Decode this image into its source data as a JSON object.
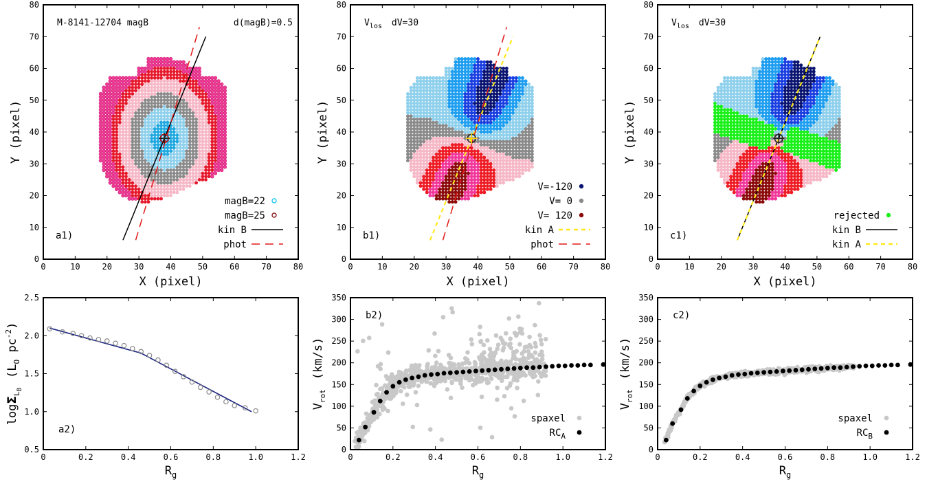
{
  "chart_data": [
    {
      "id": "a1",
      "type": "scatter",
      "panel_label": "a1)",
      "xlabel": "X  (pixel)",
      "ylabel": "Y  (pixel)",
      "xlim": [
        0,
        80
      ],
      "ylim": [
        0,
        80
      ],
      "xticks": [
        "0",
        "10",
        "20",
        "30",
        "40",
        "50",
        "60",
        "70",
        "80"
      ],
      "yticks": [
        "0",
        "10",
        "20",
        "30",
        "40",
        "50",
        "60",
        "70",
        "80"
      ],
      "annotation_left": "M-8141-12704  magB",
      "annotation_right": "d(magB)=0.5",
      "center": [
        38,
        38
      ],
      "isophote_levels": [
        "#1fa8e0",
        "#8fd0ec",
        "#8a8a8a",
        "#f6b8c6",
        "#e6192c",
        "#ee3d9a"
      ],
      "legend": [
        {
          "label": "magB=22",
          "marker": "open-circle",
          "color": "#1fc8f0"
        },
        {
          "label": "magB=25",
          "marker": "open-circle",
          "color": "#8b1a1a"
        },
        {
          "label": "kin B",
          "line": "solid",
          "color": "#000000"
        },
        {
          "label": "phot",
          "line": "dashed",
          "color": "#e01818"
        }
      ],
      "lines": [
        {
          "name": "kin B",
          "x": [
            25,
            51
          ],
          "y": [
            6,
            70
          ]
        },
        {
          "name": "phot",
          "x": [
            29,
            49
          ],
          "y": [
            6,
            73
          ]
        }
      ]
    },
    {
      "id": "b1",
      "type": "scatter",
      "panel_label": "b1)",
      "xlabel": "X  (pixel)",
      "ylabel": "Y  (pixel)",
      "xlim": [
        0,
        80
      ],
      "ylim": [
        0,
        80
      ],
      "xticks": [
        "0",
        "10",
        "20",
        "30",
        "40",
        "50",
        "60",
        "70",
        "80"
      ],
      "yticks": [
        "0",
        "10",
        "20",
        "30",
        "40",
        "50",
        "60",
        "70",
        "80"
      ],
      "annotation_base": "V",
      "annotation_sub": "los",
      "annotation_rest": "dV=30",
      "center": [
        38,
        38
      ],
      "velocity_palette": [
        "#0a1470",
        "#1a3ee0",
        "#1e9ef0",
        "#8fd0ec",
        "#8a8a8a",
        "#f6b8c6",
        "#ee1c24",
        "#f0389a",
        "#8b0a0a"
      ],
      "legend": [
        {
          "label": "V=-120",
          "marker": "dot",
          "color": "#0a1470"
        },
        {
          "label": "V=   0",
          "marker": "dot",
          "color": "#8a8a8a"
        },
        {
          "label": "V= 120",
          "marker": "dot",
          "color": "#8b0a0a"
        },
        {
          "label": "kin A",
          "line": "dashed",
          "color": "#ffe81a"
        },
        {
          "label": "phot",
          "line": "dashed",
          "color": "#e01818"
        }
      ],
      "lines": [
        {
          "name": "kin A",
          "x": [
            25,
            51
          ],
          "y": [
            6,
            70
          ]
        },
        {
          "name": "phot",
          "x": [
            29,
            49
          ],
          "y": [
            6,
            73
          ]
        }
      ]
    },
    {
      "id": "c1",
      "type": "scatter",
      "panel_label": "c1)",
      "xlabel": "X  (pixel)",
      "ylabel": "Y  (pixel)",
      "xlim": [
        0,
        80
      ],
      "ylim": [
        0,
        80
      ],
      "xticks": [
        "0",
        "10",
        "20",
        "30",
        "40",
        "50",
        "60",
        "70",
        "80"
      ],
      "yticks": [
        "0",
        "10",
        "20",
        "30",
        "40",
        "50",
        "60",
        "70",
        "80"
      ],
      "annotation_base": "V",
      "annotation_sub": "los",
      "annotation_rest": "dV=30",
      "center": [
        38,
        38
      ],
      "legend": [
        {
          "label": "rejected",
          "marker": "dot",
          "color": "#18f018"
        },
        {
          "label": "kin B",
          "line": "solid",
          "color": "#000000"
        },
        {
          "label": "kin A",
          "line": "dashed",
          "color": "#ffe81a"
        }
      ],
      "lines": [
        {
          "name": "kin B",
          "x": [
            25,
            51
          ],
          "y": [
            6,
            70
          ]
        },
        {
          "name": "kin A",
          "x": [
            25,
            51
          ],
          "y": [
            6,
            70
          ]
        }
      ]
    },
    {
      "id": "a2",
      "type": "line",
      "panel_label": "a2)",
      "xlabel_base": "R",
      "xlabel_sub": "g",
      "ylabel_main": "log",
      "ylabel_sigma": "Σ",
      "ylabel_sub": "L",
      "ylabel_subsub": "B",
      "ylabel_unit": "(L",
      "ylabel_unit_sub": "O",
      "ylabel_unit_rest": " pc",
      "ylabel_unit_sup": "-2",
      "ylabel_unit_close": ")",
      "xlim": [
        0,
        1.2
      ],
      "ylim": [
        0.5,
        2.5
      ],
      "xticks": [
        "0",
        "0.2",
        "0.4",
        "0.6",
        "0.8",
        "1.0",
        "1.2"
      ],
      "yticks": [
        "0.5",
        "1.0",
        "1.5",
        "2.0",
        "2.5"
      ],
      "series": [
        {
          "name": "data",
          "style": "open-circle",
          "color": "#8a8a8a",
          "x": [
            0.03,
            0.09,
            0.14,
            0.18,
            0.22,
            0.26,
            0.3,
            0.34,
            0.38,
            0.42,
            0.46,
            0.5,
            0.54,
            0.58,
            0.62,
            0.66,
            0.7,
            0.74,
            0.78,
            0.82,
            0.86,
            0.9,
            0.95,
            1.0
          ],
          "y": [
            2.09,
            2.05,
            2.03,
            2.0,
            1.97,
            1.95,
            1.93,
            1.9,
            1.87,
            1.83,
            1.79,
            1.74,
            1.68,
            1.61,
            1.53,
            1.46,
            1.39,
            1.32,
            1.26,
            1.19,
            1.13,
            1.08,
            1.05,
            1.01
          ]
        },
        {
          "name": "fit",
          "style": "line",
          "color": "#1a237e",
          "x": [
            0.03,
            0.46,
            0.98
          ],
          "y": [
            2.1,
            1.77,
            1.0
          ]
        }
      ]
    },
    {
      "id": "b2",
      "type": "scatter",
      "panel_label": "b2)",
      "xlabel_base": "R",
      "xlabel_sub": "g",
      "ylabel_base": "V",
      "ylabel_sub": "rot",
      "ylabel_rest": "(km/s)",
      "xlim": [
        0,
        1.2
      ],
      "ylim": [
        0,
        350
      ],
      "xticks": [
        "0",
        "0.2",
        "0.4",
        "0.6",
        "0.8",
        "1.0",
        "1.2"
      ],
      "yticks": [
        "0",
        "50",
        "100",
        "150",
        "200",
        "250",
        "300",
        "350"
      ],
      "legend": [
        {
          "label": "spaxel",
          "marker": "dot",
          "color": "#c8c8c8"
        },
        {
          "label_base": "RC",
          "label_sub": "A",
          "marker": "dot",
          "color": "#000000"
        }
      ],
      "rc_x": [
        0.04,
        0.07,
        0.11,
        0.14,
        0.17,
        0.2,
        0.23,
        0.26,
        0.29,
        0.32,
        0.35,
        0.38,
        0.41,
        0.44,
        0.47,
        0.5,
        0.53,
        0.56,
        0.59,
        0.62,
        0.65,
        0.68,
        0.71,
        0.74,
        0.77,
        0.8,
        0.83,
        0.86,
        0.89,
        0.92,
        0.95,
        0.98,
        1.01,
        1.04,
        1.07,
        1.1,
        1.13,
        1.19
      ],
      "rc_y": [
        22,
        52,
        86,
        112,
        132,
        146,
        155,
        161,
        165,
        168,
        171,
        173,
        174,
        176,
        177,
        178,
        179,
        180,
        181,
        182,
        183,
        184,
        185,
        186,
        187,
        188,
        189,
        189,
        190,
        191,
        192,
        193,
        193,
        194,
        194,
        195,
        195,
        196
      ]
    },
    {
      "id": "c2",
      "type": "scatter",
      "panel_label": "c2)",
      "xlabel_base": "R",
      "xlabel_sub": "g",
      "ylabel_base": "V",
      "ylabel_sub": "rot",
      "ylabel_rest": "(km/s)",
      "xlim": [
        0,
        1.2
      ],
      "ylim": [
        0,
        350
      ],
      "xticks": [
        "0",
        "0.2",
        "0.4",
        "0.6",
        "0.8",
        "1.0",
        "1.2"
      ],
      "yticks": [
        "0",
        "50",
        "100",
        "150",
        "200",
        "250",
        "300",
        "350"
      ],
      "legend": [
        {
          "label": "spaxel",
          "marker": "dot",
          "color": "#c8c8c8"
        },
        {
          "label_base": "RC",
          "label_sub": "B",
          "marker": "dot",
          "color": "#000000"
        }
      ],
      "rc_x": [
        0.04,
        0.07,
        0.11,
        0.14,
        0.17,
        0.2,
        0.23,
        0.26,
        0.29,
        0.32,
        0.35,
        0.38,
        0.41,
        0.44,
        0.47,
        0.5,
        0.53,
        0.56,
        0.59,
        0.62,
        0.65,
        0.68,
        0.71,
        0.74,
        0.77,
        0.8,
        0.83,
        0.86,
        0.89,
        0.92,
        0.95,
        0.98,
        1.01,
        1.04,
        1.07,
        1.1,
        1.13,
        1.19
      ],
      "rc_y": [
        22,
        60,
        92,
        118,
        135,
        147,
        155,
        161,
        165,
        168,
        171,
        173,
        174,
        176,
        177,
        178,
        179,
        180,
        181,
        182,
        183,
        184,
        185,
        186,
        187,
        188,
        189,
        189,
        190,
        191,
        192,
        193,
        193,
        194,
        194,
        195,
        195,
        196
      ]
    }
  ]
}
